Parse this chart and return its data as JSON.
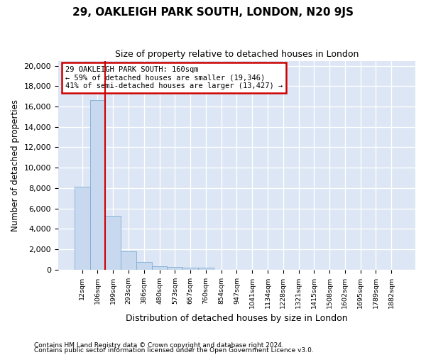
{
  "title1": "29, OAKLEIGH PARK SOUTH, LONDON, N20 9JS",
  "title2": "Size of property relative to detached houses in London",
  "xlabel": "Distribution of detached houses by size in London",
  "ylabel": "Number of detached properties",
  "bar_labels": [
    "12sqm",
    "106sqm",
    "199sqm",
    "293sqm",
    "386sqm",
    "480sqm",
    "573sqm",
    "667sqm",
    "760sqm",
    "854sqm",
    "947sqm",
    "1041sqm",
    "1134sqm",
    "1228sqm",
    "1321sqm",
    "1415sqm",
    "1508sqm",
    "1602sqm",
    "1695sqm",
    "1789sqm",
    "1882sqm"
  ],
  "bar_values": [
    8100,
    16600,
    5300,
    1750,
    750,
    350,
    250,
    200,
    160,
    0,
    0,
    0,
    0,
    0,
    0,
    0,
    0,
    0,
    0,
    0,
    0
  ],
  "bar_color": "#c8d9ef",
  "bar_edge_color": "#7fafd4",
  "vline_x": 2.0,
  "vline_color": "#cc0000",
  "annotation_text": "29 OAKLEIGH PARK SOUTH: 160sqm\n← 59% of detached houses are smaller (19,346)\n41% of semi-detached houses are larger (13,427) →",
  "annotation_box_color": "#cc0000",
  "ylim": [
    0,
    20500
  ],
  "yticks": [
    0,
    2000,
    4000,
    6000,
    8000,
    10000,
    12000,
    14000,
    16000,
    18000,
    20000
  ],
  "footnote1": "Contains HM Land Registry data © Crown copyright and database right 2024.",
  "footnote2": "Contains public sector information licensed under the Open Government Licence v3.0.",
  "bg_color": "#ffffff",
  "plot_bg_color": "#dce6f5",
  "grid_color": "#ffffff"
}
